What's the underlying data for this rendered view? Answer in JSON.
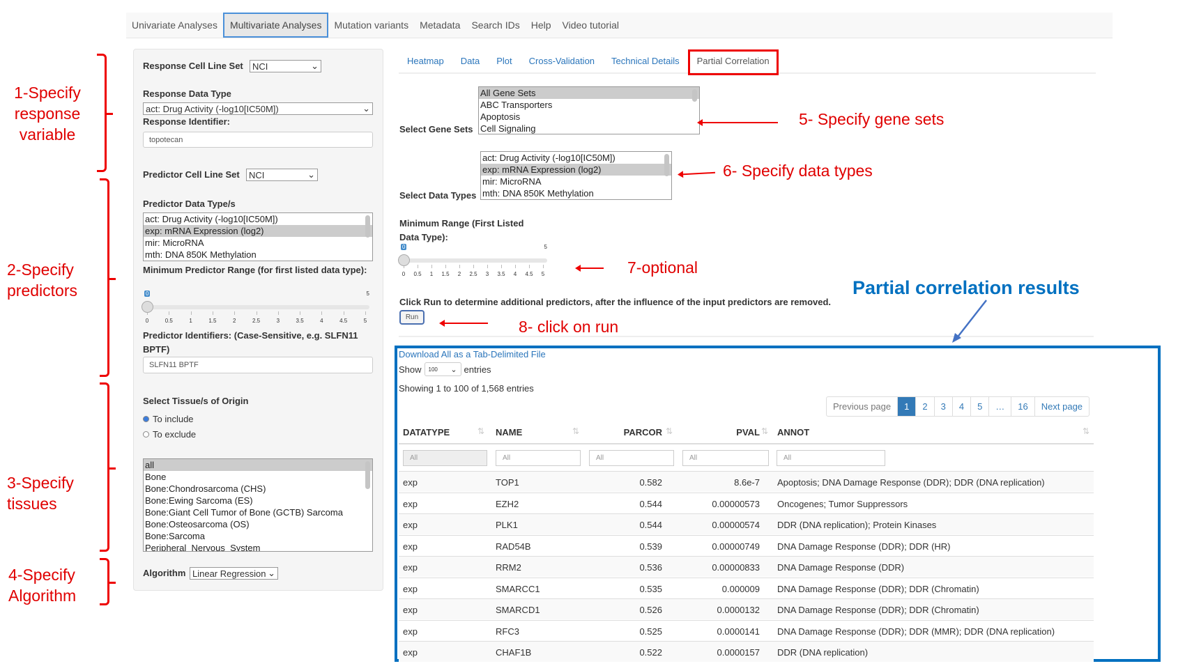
{
  "nav": {
    "tabs": [
      "Univariate Analyses",
      "Multivariate Analyses",
      "Mutation variants",
      "Metadata",
      "Search IDs",
      "Help",
      "Video tutorial"
    ],
    "active": 1
  },
  "left": {
    "response_cell_line_label": "Response Cell Line Set",
    "response_cell_line_value": "NCI",
    "response_data_type_label": "Response Data Type",
    "response_data_type_value": "act: Drug Activity (-log10[IC50M])",
    "response_identifier_label": "Response Identifier:",
    "response_identifier_value": "topotecan",
    "predictor_cell_line_label": "Predictor Cell Line Set",
    "predictor_cell_line_value": "NCI",
    "predictor_data_types_label": "Predictor Data Type/s",
    "predictor_data_types": [
      "act: Drug Activity (-log10[IC50M])",
      "exp: mRNA Expression (log2)",
      "mir: MicroRNA",
      "mth: DNA 850K Methylation"
    ],
    "predictor_data_types_selected": 1,
    "min_range_label": "Minimum Predictor Range (for first listed data type):",
    "min_range_value": 0,
    "min_range_max": 5,
    "predictor_ids_label": "Predictor Identifiers: (Case-Sensitive, e.g. SLFN11 BPTF)",
    "predictor_ids_value": "SLFN11 BPTF",
    "tissue_label": "Select Tissue/s of Origin",
    "tissue_radios": [
      "To include",
      "To exclude"
    ],
    "tissue_radio_selected": 0,
    "tissues": [
      "all",
      "Bone",
      "Bone:Chondrosarcoma (CHS)",
      "Bone:Ewing Sarcoma (ES)",
      "Bone:Giant Cell Tumor of Bone (GCTB) Sarcoma",
      "Bone:Osteosarcoma (OS)",
      "Bone:Sarcoma",
      "Peripheral_Nervous_System"
    ],
    "algorithm_label": "Algorithm",
    "algorithm_value": "Linear Regression"
  },
  "slider_ticks": [
    "0",
    "0.5",
    "1",
    "1.5",
    "2",
    "2.5",
    "3",
    "3.5",
    "4",
    "4.5",
    "5"
  ],
  "tabs": {
    "items": [
      "Heatmap",
      "Data",
      "Plot",
      "Cross-Validation",
      "Technical Details",
      "Partial Correlation"
    ],
    "active": 5
  },
  "pc": {
    "gene_sets_label": "Select Gene Sets",
    "gene_sets": [
      "All Gene Sets",
      "ABC Transporters",
      "Apoptosis",
      "Cell Signaling"
    ],
    "data_types_label": "Select Data Types",
    "data_types": [
      "act: Drug Activity (-log10[IC50M])",
      "exp: mRNA Expression (log2)",
      "mir: MicroRNA",
      "mth: DNA 850K Methylation"
    ],
    "min_range_label_1": "Minimum Range (First Listed",
    "min_range_label_2": "Data Type):",
    "run_text": "Click Run to determine additional predictors, after the influence of the input predictors are removed.",
    "run_label": "Run"
  },
  "annotations": {
    "a1": "1-Specify response variable",
    "a2": "2-Specify predictors",
    "a3": "3-Specify tissues",
    "a4": "4-Specify Algorithm",
    "a5": "5- Specify gene sets",
    "a6": "6- Specify data types",
    "a7": "7-optional",
    "a8": "8- click on run",
    "results": "Partial correlation results"
  },
  "results": {
    "download": "Download All as a Tab-Delimited File",
    "show": "Show",
    "show_value": "100",
    "entries": "entries",
    "info": "Showing 1 to 100 of 1,568 entries",
    "pagination": [
      "Previous page",
      "1",
      "2",
      "3",
      "4",
      "5",
      "…",
      "16",
      "Next page"
    ],
    "columns": [
      "DATATYPE",
      "NAME",
      "PARCOR",
      "PVAL",
      "ANNOT"
    ],
    "filter_placeholder": "All",
    "rows": [
      [
        "exp",
        "TOP1",
        "0.582",
        "8.6e-7",
        "Apoptosis; DNA Damage Response (DDR); DDR (DNA replication)"
      ],
      [
        "exp",
        "EZH2",
        "0.544",
        "0.00000573",
        "Oncogenes; Tumor Suppressors"
      ],
      [
        "exp",
        "PLK1",
        "0.544",
        "0.00000574",
        "DDR (DNA replication); Protein Kinases"
      ],
      [
        "exp",
        "RAD54B",
        "0.539",
        "0.00000749",
        "DNA Damage Response (DDR); DDR (HR)"
      ],
      [
        "exp",
        "RRM2",
        "0.536",
        "0.00000833",
        "DNA Damage Response (DDR)"
      ],
      [
        "exp",
        "SMARCC1",
        "0.535",
        "0.000009",
        "DNA Damage Response (DDR); DDR (Chromatin)"
      ],
      [
        "exp",
        "SMARCD1",
        "0.526",
        "0.0000132",
        "DNA Damage Response (DDR); DDR (Chromatin)"
      ],
      [
        "exp",
        "RFC3",
        "0.525",
        "0.0000141",
        "DNA Damage Response (DDR); DDR (MMR); DDR (DNA replication)"
      ],
      [
        "exp",
        "CHAF1B",
        "0.522",
        "0.0000157",
        "DDR (DNA replication)"
      ]
    ]
  },
  "colors": {
    "annotation_red": "#e00000",
    "results_blue": "#0070c0",
    "link": "#2a75bb"
  }
}
